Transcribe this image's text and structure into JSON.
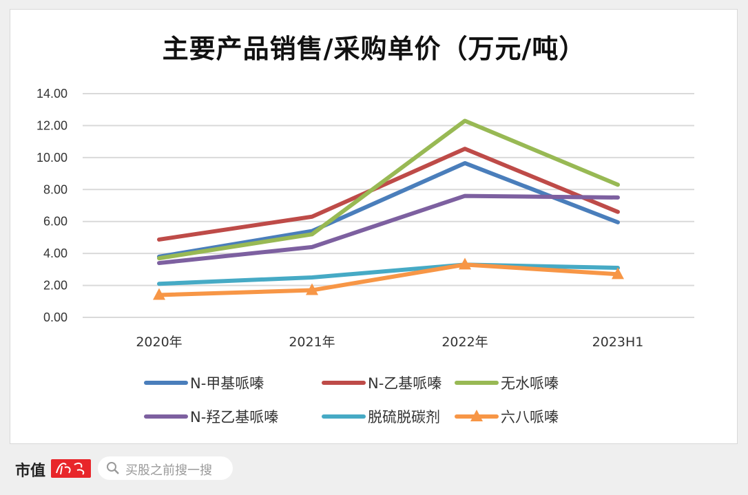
{
  "chart_data": {
    "type": "line",
    "title": "主要产品销售/采购单价（万元/吨）",
    "categories": [
      "2020年",
      "2021年",
      "2022年",
      "2023H1"
    ],
    "ylim": [
      0,
      14
    ],
    "yticks": [
      "0.00",
      "2.00",
      "4.00",
      "6.00",
      "8.00",
      "10.00",
      "12.00",
      "14.00"
    ],
    "grid": true,
    "legend_position": "bottom",
    "series": [
      {
        "name": "N-甲基哌嗪",
        "color": "#4a7ebb",
        "values": [
          3.8,
          5.4,
          9.65,
          5.95
        ]
      },
      {
        "name": "N-乙基哌嗪",
        "color": "#be4b48",
        "values": [
          4.87,
          6.3,
          10.55,
          6.6
        ]
      },
      {
        "name": "无水哌嗪",
        "color": "#98b954",
        "values": [
          3.7,
          5.2,
          12.3,
          8.3
        ]
      },
      {
        "name": "N-羟乙基哌嗪",
        "color": "#7d60a0",
        "values": [
          3.4,
          4.4,
          7.6,
          7.5
        ]
      },
      {
        "name": "脱硫脱碳剂",
        "color": "#46aac5",
        "values": [
          2.1,
          2.5,
          3.3,
          3.1
        ]
      },
      {
        "name": "六八哌嗪",
        "color": "#f79646",
        "values": [
          1.4,
          1.7,
          3.3,
          2.7
        ],
        "marker": "triangle"
      }
    ]
  },
  "footer": {
    "brand": "市值",
    "brand_logo_text": "风云",
    "search_placeholder": "买股之前搜一搜",
    "search_icon": "search-icon"
  },
  "watermark": "市值风云"
}
